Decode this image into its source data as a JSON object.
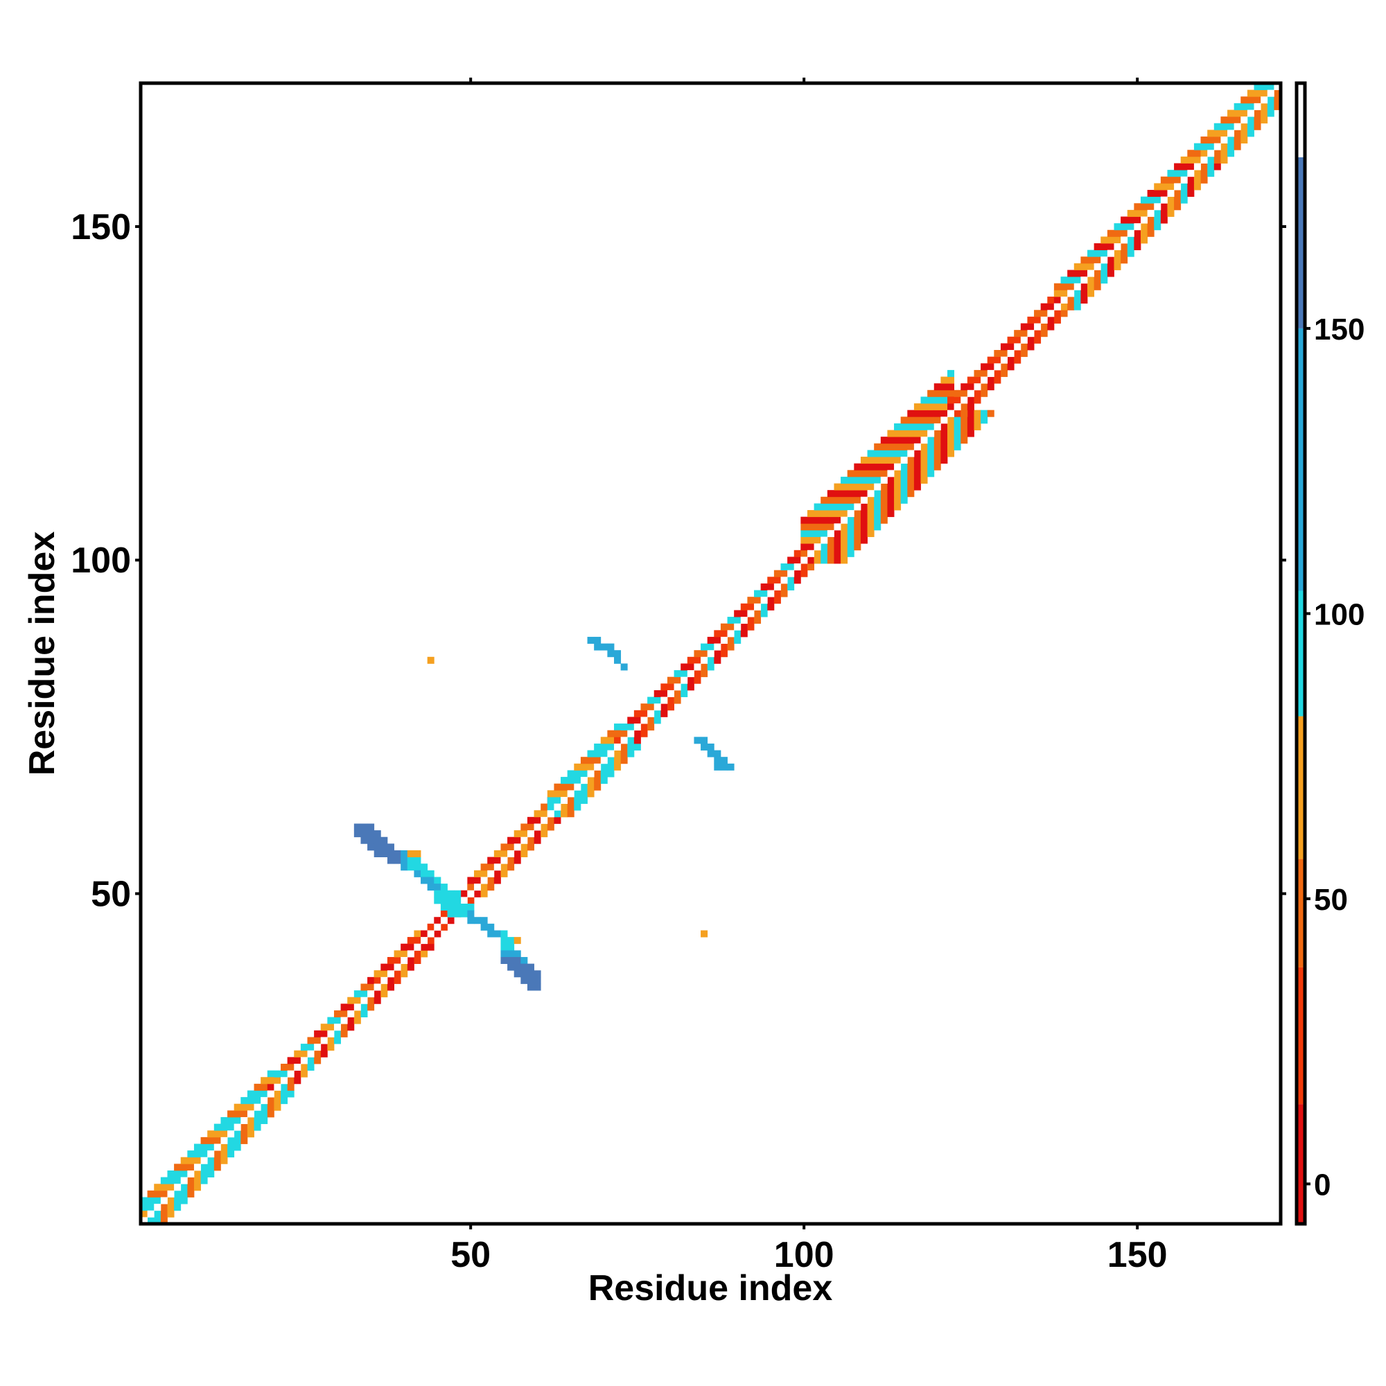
{
  "chart_data": {
    "type": "heatmap",
    "xlabel": "Residue index",
    "ylabel": "Residue index",
    "xlim": [
      0.5,
      171.5
    ],
    "ylim": [
      0.5,
      171.5
    ],
    "x_ticks": [
      50,
      100,
      150
    ],
    "y_ticks": [
      50,
      100,
      150
    ],
    "colorbar": {
      "ticks": [
        0,
        50,
        100,
        150
      ],
      "range": [
        -7,
        193
      ],
      "stops": [
        {
          "from": -7,
          "to": 14,
          "color": "#e01010"
        },
        {
          "from": 14,
          "to": 38,
          "color": "#f23a0a"
        },
        {
          "from": 38,
          "to": 57,
          "color": "#f06a12"
        },
        {
          "from": 57,
          "to": 82,
          "color": "#f5a020"
        },
        {
          "from": 82,
          "to": 104,
          "color": "#22d8e2"
        },
        {
          "from": 104,
          "to": 150,
          "color": "#2aa8d8"
        },
        {
          "from": 150,
          "to": 180,
          "color": "#4a78b8"
        },
        {
          "from": 180,
          "to": 193,
          "color": "#ffffff"
        }
      ]
    },
    "diagonal": {
      "start": 1,
      "end": 171,
      "band_segments": [
        {
          "from": 1,
          "to": 20,
          "halfwidth": 3,
          "pattern": [
            "#22d8e2",
            "#f06a12",
            "#f5a020",
            "#22d8e2"
          ]
        },
        {
          "from": 20,
          "to": 36,
          "halfwidth": 2,
          "pattern": [
            "#f06a12",
            "#e01010",
            "#f5a020",
            "#22d8e2"
          ]
        },
        {
          "from": 36,
          "to": 42,
          "halfwidth": 2,
          "pattern": [
            "#e01010",
            "#f23a0a",
            "#f5a020"
          ]
        },
        {
          "from": 42,
          "to": 50,
          "halfwidth": 1,
          "pattern": [
            "#e01010",
            "#f23a0a"
          ]
        },
        {
          "from": 50,
          "to": 62,
          "halfwidth": 2,
          "pattern": [
            "#f06a12",
            "#e01010",
            "#f5a020"
          ]
        },
        {
          "from": 62,
          "to": 72,
          "halfwidth": 3,
          "pattern": [
            "#22d8e2",
            "#f5a020",
            "#f06a12",
            "#22d8e2"
          ]
        },
        {
          "from": 72,
          "to": 100,
          "halfwidth": 2,
          "pattern": [
            "#e01010",
            "#f23a0a",
            "#f06a12",
            "#22d8e2"
          ]
        },
        {
          "from": 100,
          "to": 122,
          "halfwidth": 6,
          "pattern": [
            "#22d8e2",
            "#f06a12",
            "#e01010",
            "#f5a020"
          ]
        },
        {
          "from": 122,
          "to": 138,
          "halfwidth": 2,
          "pattern": [
            "#e01010",
            "#f23a0a",
            "#f06a12"
          ]
        },
        {
          "from": 138,
          "to": 160,
          "halfwidth": 3,
          "pattern": [
            "#f5a020",
            "#f06a12",
            "#22d8e2",
            "#e01010"
          ]
        },
        {
          "from": 160,
          "to": 171,
          "halfwidth": 3,
          "pattern": [
            "#22d8e2",
            "#f06a12",
            "#f5a020"
          ]
        }
      ]
    },
    "off_diagonal_cells": [
      {
        "x": 33,
        "y": 60,
        "color": "#4a78b8"
      },
      {
        "x": 34,
        "y": 60,
        "color": "#4a78b8"
      },
      {
        "x": 35,
        "y": 60,
        "color": "#4a78b8"
      },
      {
        "x": 33,
        "y": 59,
        "color": "#4a78b8"
      },
      {
        "x": 34,
        "y": 59,
        "color": "#4a78b8"
      },
      {
        "x": 35,
        "y": 59,
        "color": "#4a78b8"
      },
      {
        "x": 36,
        "y": 59,
        "color": "#4a78b8"
      },
      {
        "x": 34,
        "y": 58,
        "color": "#4a78b8"
      },
      {
        "x": 35,
        "y": 58,
        "color": "#4a78b8"
      },
      {
        "x": 36,
        "y": 58,
        "color": "#4a78b8"
      },
      {
        "x": 37,
        "y": 58,
        "color": "#4a78b8"
      },
      {
        "x": 35,
        "y": 57,
        "color": "#4a78b8"
      },
      {
        "x": 36,
        "y": 57,
        "color": "#4a78b8"
      },
      {
        "x": 37,
        "y": 57,
        "color": "#4a78b8"
      },
      {
        "x": 38,
        "y": 57,
        "color": "#4a78b8"
      },
      {
        "x": 36,
        "y": 56,
        "color": "#4a78b8"
      },
      {
        "x": 37,
        "y": 56,
        "color": "#4a78b8"
      },
      {
        "x": 38,
        "y": 56,
        "color": "#4a78b8"
      },
      {
        "x": 39,
        "y": 56,
        "color": "#4a78b8"
      },
      {
        "x": 40,
        "y": 56,
        "color": "#2aa8d8"
      },
      {
        "x": 38,
        "y": 55,
        "color": "#4a78b8"
      },
      {
        "x": 39,
        "y": 55,
        "color": "#4a78b8"
      },
      {
        "x": 40,
        "y": 55,
        "color": "#2aa8d8"
      },
      {
        "x": 41,
        "y": 55,
        "color": "#22d8e2"
      },
      {
        "x": 42,
        "y": 55,
        "color": "#22d8e2"
      },
      {
        "x": 40,
        "y": 54,
        "color": "#2aa8d8"
      },
      {
        "x": 41,
        "y": 54,
        "color": "#22d8e2"
      },
      {
        "x": 42,
        "y": 54,
        "color": "#22d8e2"
      },
      {
        "x": 43,
        "y": 54,
        "color": "#22d8e2"
      },
      {
        "x": 42,
        "y": 53,
        "color": "#2aa8d8"
      },
      {
        "x": 43,
        "y": 53,
        "color": "#22d8e2"
      },
      {
        "x": 44,
        "y": 53,
        "color": "#22d8e2"
      },
      {
        "x": 43,
        "y": 52,
        "color": "#2aa8d8"
      },
      {
        "x": 44,
        "y": 52,
        "color": "#2aa8d8"
      },
      {
        "x": 45,
        "y": 52,
        "color": "#22d8e2"
      },
      {
        "x": 44,
        "y": 51,
        "color": "#2aa8d8"
      },
      {
        "x": 45,
        "y": 51,
        "color": "#2aa8d8"
      },
      {
        "x": 46,
        "y": 51,
        "color": "#22d8e2"
      },
      {
        "x": 45,
        "y": 50,
        "color": "#22d8e2"
      },
      {
        "x": 46,
        "y": 50,
        "color": "#22d8e2"
      },
      {
        "x": 47,
        "y": 50,
        "color": "#22d8e2"
      },
      {
        "x": 48,
        "y": 50,
        "color": "#22d8e2"
      },
      {
        "x": 45,
        "y": 49,
        "color": "#22d8e2"
      },
      {
        "x": 46,
        "y": 49,
        "color": "#22d8e2"
      },
      {
        "x": 47,
        "y": 49,
        "color": "#22d8e2"
      },
      {
        "x": 48,
        "y": 49,
        "color": "#22d8e2"
      },
      {
        "x": 46,
        "y": 48,
        "color": "#22d8e2"
      },
      {
        "x": 47,
        "y": 48,
        "color": "#22d8e2"
      },
      {
        "x": 48,
        "y": 48,
        "color": "#22d8e2"
      },
      {
        "x": 49,
        "y": 48,
        "color": "#22d8e2"
      },
      {
        "x": 50,
        "y": 48,
        "color": "#22d8e2"
      },
      {
        "x": 47,
        "y": 47,
        "color": "#22d8e2"
      },
      {
        "x": 48,
        "y": 47,
        "color": "#22d8e2"
      },
      {
        "x": 49,
        "y": 47,
        "color": "#22d8e2"
      },
      {
        "x": 50,
        "y": 47,
        "color": "#2aa8d8"
      },
      {
        "x": 50,
        "y": 46,
        "color": "#2aa8d8"
      },
      {
        "x": 51,
        "y": 46,
        "color": "#2aa8d8"
      },
      {
        "x": 52,
        "y": 46,
        "color": "#2aa8d8"
      },
      {
        "x": 52,
        "y": 45,
        "color": "#2aa8d8"
      },
      {
        "x": 53,
        "y": 45,
        "color": "#2aa8d8"
      },
      {
        "x": 53,
        "y": 44,
        "color": "#2aa8d8"
      },
      {
        "x": 54,
        "y": 44,
        "color": "#2aa8d8"
      },
      {
        "x": 55,
        "y": 44,
        "color": "#22d8e2"
      },
      {
        "x": 55,
        "y": 43,
        "color": "#22d8e2"
      },
      {
        "x": 56,
        "y": 43,
        "color": "#22d8e2"
      },
      {
        "x": 57,
        "y": 43,
        "color": "#f5a020"
      },
      {
        "x": 55,
        "y": 42,
        "color": "#22d8e2"
      },
      {
        "x": 56,
        "y": 42,
        "color": "#22d8e2"
      },
      {
        "x": 55,
        "y": 41,
        "color": "#2aa8d8"
      },
      {
        "x": 56,
        "y": 41,
        "color": "#2aa8d8"
      },
      {
        "x": 57,
        "y": 41,
        "color": "#2aa8d8"
      },
      {
        "x": 55,
        "y": 40,
        "color": "#4a78b8"
      },
      {
        "x": 56,
        "y": 40,
        "color": "#4a78b8"
      },
      {
        "x": 57,
        "y": 40,
        "color": "#4a78b8"
      },
      {
        "x": 58,
        "y": 40,
        "color": "#2aa8d8"
      },
      {
        "x": 56,
        "y": 39,
        "color": "#4a78b8"
      },
      {
        "x": 57,
        "y": 39,
        "color": "#4a78b8"
      },
      {
        "x": 58,
        "y": 39,
        "color": "#4a78b8"
      },
      {
        "x": 59,
        "y": 39,
        "color": "#4a78b8"
      },
      {
        "x": 57,
        "y": 38,
        "color": "#4a78b8"
      },
      {
        "x": 58,
        "y": 38,
        "color": "#4a78b8"
      },
      {
        "x": 59,
        "y": 38,
        "color": "#4a78b8"
      },
      {
        "x": 60,
        "y": 38,
        "color": "#4a78b8"
      },
      {
        "x": 58,
        "y": 37,
        "color": "#4a78b8"
      },
      {
        "x": 59,
        "y": 37,
        "color": "#4a78b8"
      },
      {
        "x": 60,
        "y": 37,
        "color": "#4a78b8"
      },
      {
        "x": 59,
        "y": 36,
        "color": "#4a78b8"
      },
      {
        "x": 60,
        "y": 36,
        "color": "#4a78b8"
      },
      {
        "x": 41,
        "y": 56,
        "color": "#f5a020"
      },
      {
        "x": 42,
        "y": 56,
        "color": "#f5a020"
      },
      {
        "x": 68,
        "y": 88,
        "color": "#2aa8d8"
      },
      {
        "x": 69,
        "y": 88,
        "color": "#2aa8d8"
      },
      {
        "x": 69,
        "y": 87,
        "color": "#2aa8d8"
      },
      {
        "x": 70,
        "y": 87,
        "color": "#2aa8d8"
      },
      {
        "x": 71,
        "y": 87,
        "color": "#2aa8d8"
      },
      {
        "x": 71,
        "y": 86,
        "color": "#2aa8d8"
      },
      {
        "x": 72,
        "y": 86,
        "color": "#2aa8d8"
      },
      {
        "x": 72,
        "y": 85,
        "color": "#2aa8d8"
      },
      {
        "x": 73,
        "y": 84,
        "color": "#2aa8d8"
      },
      {
        "x": 84,
        "y": 73,
        "color": "#2aa8d8"
      },
      {
        "x": 85,
        "y": 73,
        "color": "#2aa8d8"
      },
      {
        "x": 85,
        "y": 72,
        "color": "#2aa8d8"
      },
      {
        "x": 86,
        "y": 72,
        "color": "#2aa8d8"
      },
      {
        "x": 86,
        "y": 71,
        "color": "#2aa8d8"
      },
      {
        "x": 87,
        "y": 71,
        "color": "#2aa8d8"
      },
      {
        "x": 87,
        "y": 70,
        "color": "#2aa8d8"
      },
      {
        "x": 88,
        "y": 70,
        "color": "#2aa8d8"
      },
      {
        "x": 87,
        "y": 69,
        "color": "#2aa8d8"
      },
      {
        "x": 88,
        "y": 69,
        "color": "#2aa8d8"
      },
      {
        "x": 89,
        "y": 69,
        "color": "#2aa8d8"
      },
      {
        "x": 44,
        "y": 85,
        "color": "#f5a020"
      },
      {
        "x": 85,
        "y": 44,
        "color": "#f5a020"
      }
    ]
  }
}
